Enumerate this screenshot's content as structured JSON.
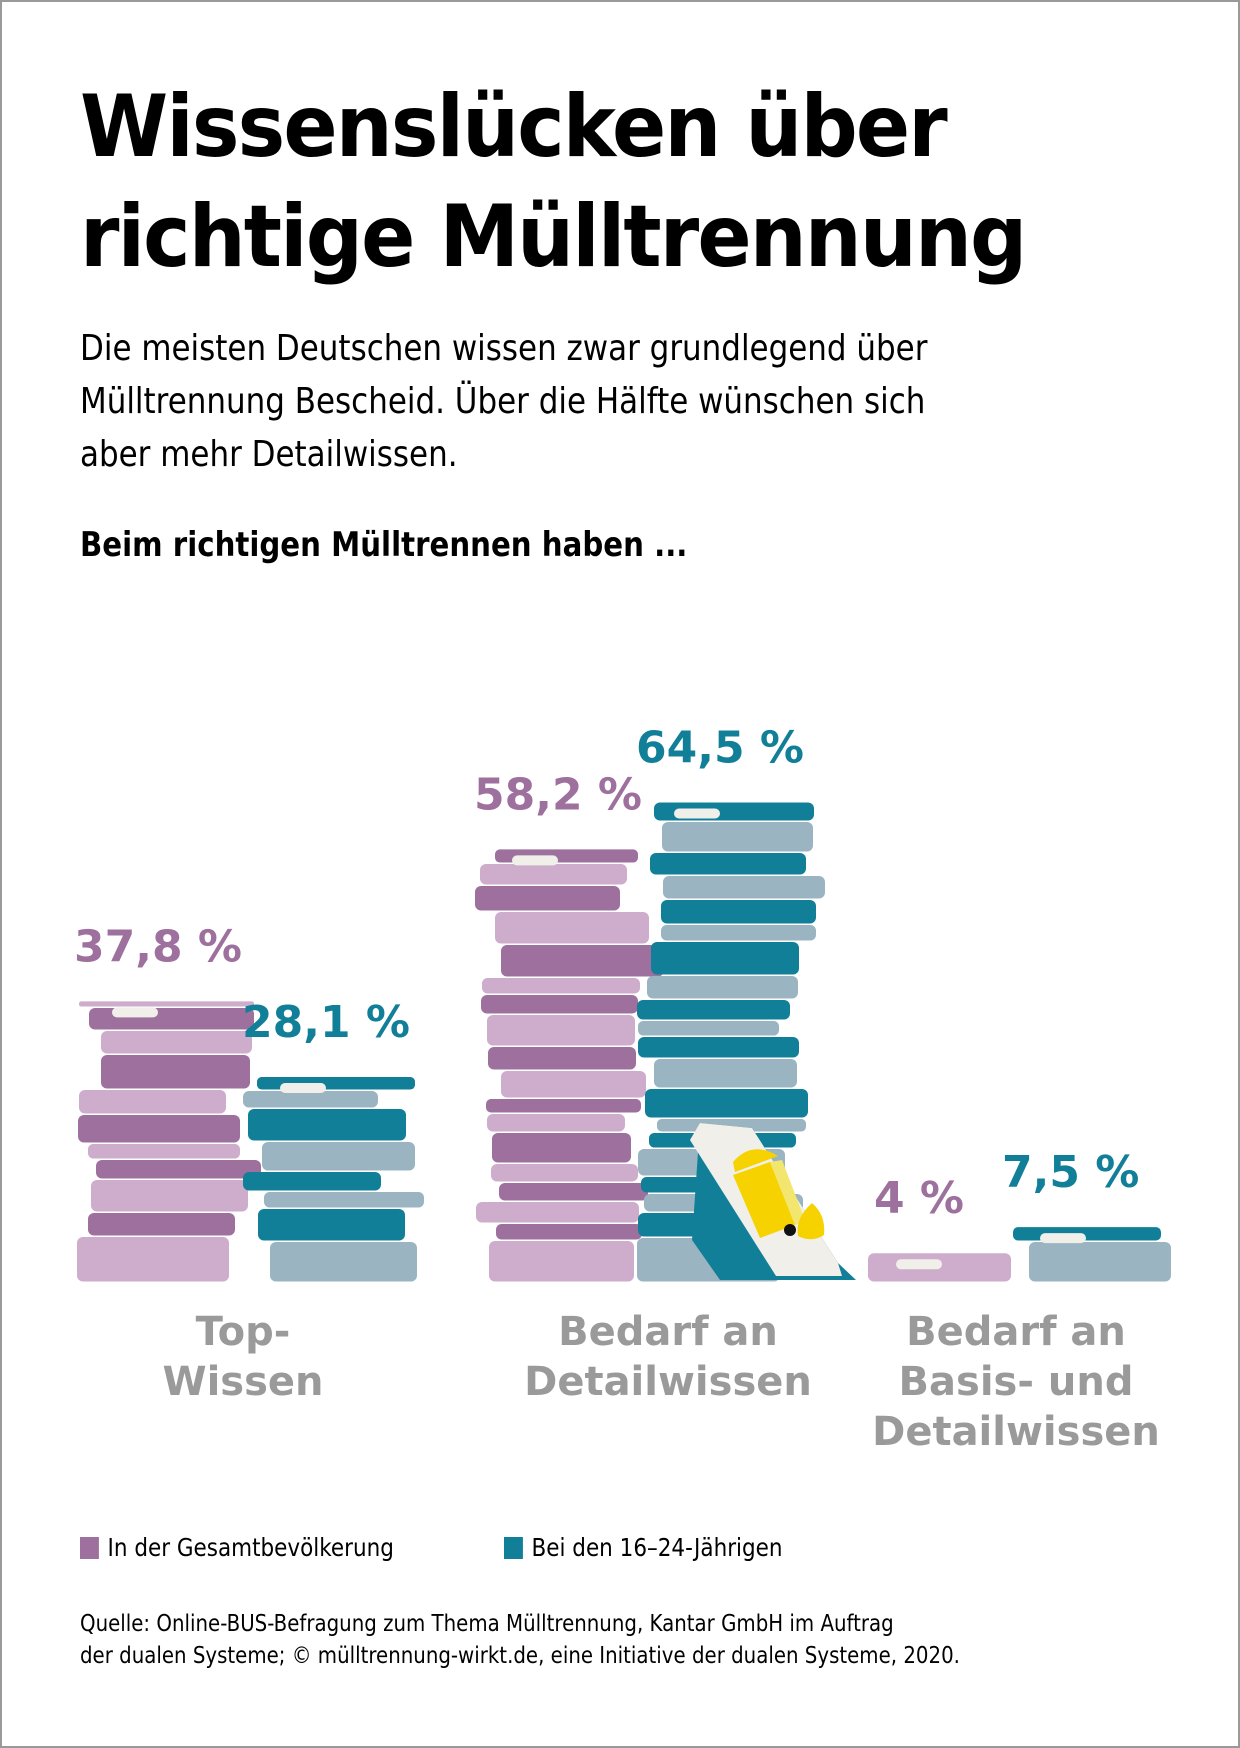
{
  "title_lines": [
    "Wissenslücken über",
    "richtige Mülltrennung"
  ],
  "intro": "Die meisten Deutschen wissen zwar grundlegend über\nMülltrennung Bescheid. Über die Hälfte wünschen sich\naber mehr Detailwissen.",
  "subheading": "Beim richtigen Mülltrennen haben ...",
  "colors": {
    "purple_dark": "#9e709e",
    "purple_light": "#cdadcb",
    "teal_dark": "#127f99",
    "teal_light": "#9bb4c2",
    "page_edge": "#f0efea",
    "bin_yellow": "#f5d200",
    "bin_light": "#f2e66f",
    "category_gray": "#9a9a9a"
  },
  "legend": [
    {
      "label": "In der Gesamtbevölkerung",
      "color": "#9e709e"
    },
    {
      "label": "Bei den 16–24-Jährigen",
      "color": "#127f99"
    }
  ],
  "source": "Quelle: Online-BUS-Befragung zum Thema Mülltrennung, Kantar GmbH im Auftrag\nder dualen Systeme; © mülltrennung-wirkt.de, eine Initiative der dualen Systeme, 2020.",
  "chart_data": {
    "type": "bar",
    "title": "Beim richtigen Mülltrennen haben ...",
    "xlabel": "",
    "ylabel": "",
    "unit": "%",
    "ylim": [
      0,
      70
    ],
    "grid": false,
    "legend_position": "bottom-left",
    "categories": [
      [
        "Top-",
        "Wissen"
      ],
      [
        "Bedarf an",
        "Detailwissen"
      ],
      [
        "Bedarf an",
        "Basis- und",
        "Detailwissen"
      ]
    ],
    "series": [
      {
        "name": "In der Gesamtbevölkerung",
        "values": [
          37.8,
          58.2,
          4.0
        ],
        "labels": [
          "37,8 %",
          "58,2 %",
          "4 %"
        ],
        "color": "#9e709e"
      },
      {
        "name": "Bei den 16–24-Jährigen",
        "values": [
          28.1,
          64.5,
          7.5
        ],
        "labels": [
          "28,1 %",
          "64,5 %",
          "7,5 %"
        ],
        "color": "#127f99"
      }
    ]
  }
}
